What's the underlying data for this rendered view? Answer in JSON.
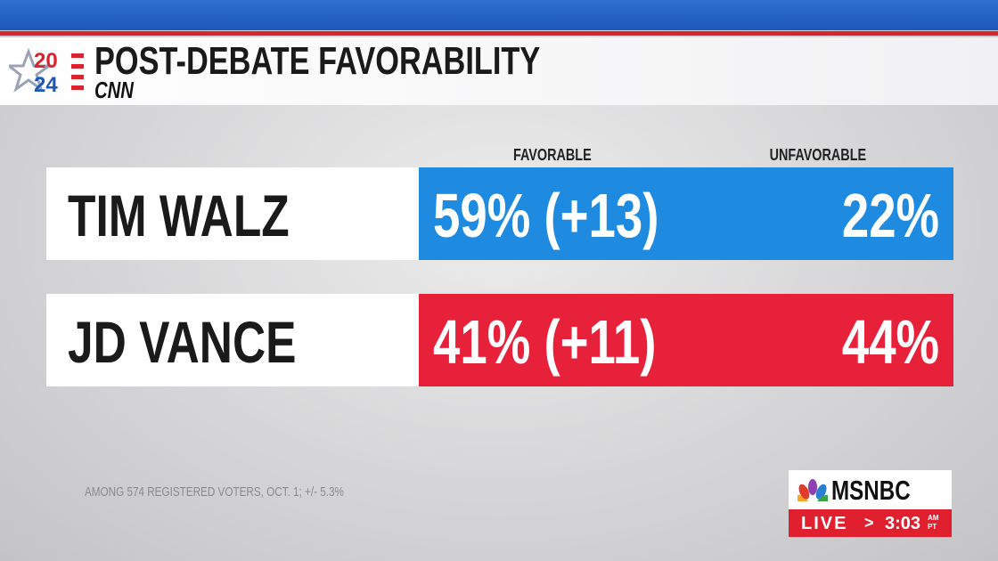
{
  "header": {
    "title": "POST-DEBATE FAVORABILITY",
    "year_top": "20",
    "year_bottom": "24",
    "network": "CNN"
  },
  "table": {
    "columns": [
      "FAVORABLE",
      "UNFAVORABLE"
    ],
    "rows": [
      {
        "name": "TIM WALZ",
        "favorable": "59% (+13)",
        "unfavorable": "22%"
      },
      {
        "name": "JD VANCE",
        "favorable": "41% (+11)",
        "unfavorable": "44%"
      }
    ]
  },
  "footnote": "AMONG 574 REGISTERED VOTERS, OCT. 1; +/- 5.3%",
  "badge": {
    "network": "MSNBC",
    "live": "LIVE",
    "arrow": ">",
    "time": "3:03",
    "meridiem": "AM",
    "zone": "PT"
  }
}
